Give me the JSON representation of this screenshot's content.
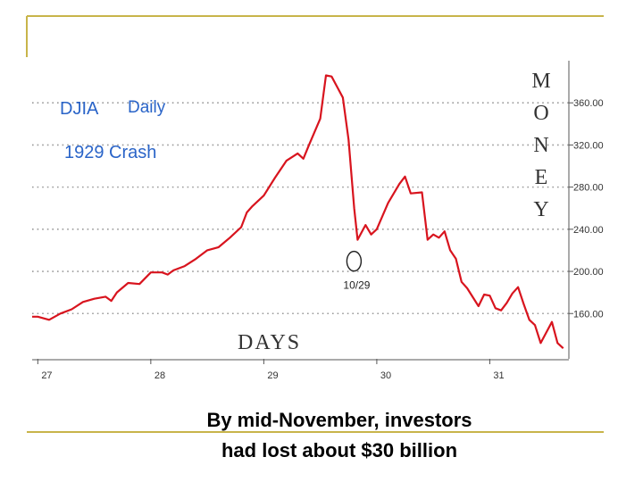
{
  "colors": {
    "line": "#d8141e",
    "accent": "#c8b44a",
    "label_blue": "#2a64c8",
    "grid": "#9a9a9a",
    "axis": "#555555"
  },
  "caption": {
    "line1": "By mid-November, investors",
    "line2": "had lost about $30 billion"
  },
  "chart_data": {
    "type": "line",
    "title": "DJIA",
    "subtitle": "Daily",
    "title2": "1929 Crash",
    "xlabel": "DAYS",
    "ylabel": "MONEY",
    "ylabel_letters": [
      "M",
      "O",
      "N",
      "E",
      "Y"
    ],
    "x_ticks": [
      {
        "label": "27",
        "value": 1927
      },
      {
        "label": "28",
        "value": 1928
      },
      {
        "label": "29",
        "value": 1929
      },
      {
        "label": "30",
        "value": 1930
      },
      {
        "label": "31",
        "value": 1931
      }
    ],
    "y_ticks": [
      {
        "label": "160.00",
        "value": 160
      },
      {
        "label": "200.00",
        "value": 200
      },
      {
        "label": "240.00",
        "value": 240
      },
      {
        "label": "280.00",
        "value": 280
      },
      {
        "label": "320.00",
        "value": 320
      },
      {
        "label": "360.00",
        "value": 360
      }
    ],
    "xlim": [
      1926.95,
      1931.7
    ],
    "ylim": [
      117,
      400
    ],
    "grid": true,
    "annotation": {
      "label": "10/29",
      "x": 1929.83,
      "y": 230
    },
    "series": [
      {
        "x": [
          1926.95,
          1927.0,
          1927.1,
          1927.2,
          1927.3,
          1927.4,
          1927.5,
          1927.6,
          1927.65,
          1927.7,
          1927.8,
          1927.9,
          1928.0,
          1928.1,
          1928.15,
          1928.2,
          1928.3,
          1928.4,
          1928.5,
          1928.6,
          1928.7,
          1928.8,
          1928.85,
          1928.9,
          1929.0,
          1929.1,
          1929.2,
          1929.3,
          1929.35,
          1929.4,
          1929.5,
          1929.55,
          1929.6,
          1929.65,
          1929.7,
          1929.75,
          1929.8,
          1929.83,
          1929.9,
          1929.95,
          1930.0,
          1930.1,
          1930.2,
          1930.25,
          1930.3,
          1930.4,
          1930.45,
          1930.5,
          1930.55,
          1930.6,
          1930.65,
          1930.7,
          1930.75,
          1930.8,
          1930.9,
          1930.95,
          1931.0,
          1931.05,
          1931.1,
          1931.15,
          1931.2,
          1931.25,
          1931.3,
          1931.35,
          1931.4,
          1931.45,
          1931.5,
          1931.55,
          1931.6,
          1931.65
        ],
        "y": [
          157,
          157,
          154,
          160,
          164,
          171,
          174,
          176,
          172,
          180,
          189,
          188,
          199,
          199,
          197,
          201,
          205,
          212,
          220,
          223,
          232,
          242,
          256,
          262,
          272,
          289,
          305,
          312,
          307,
          320,
          345,
          386,
          385,
          375,
          365,
          325,
          260,
          230,
          244,
          235,
          240,
          265,
          283,
          290,
          274,
          275,
          230,
          235,
          232,
          238,
          220,
          212,
          190,
          184,
          167,
          178,
          177,
          165,
          163,
          170,
          179,
          185,
          169,
          154,
          149,
          132,
          142,
          152,
          132,
          127
        ]
      }
    ]
  }
}
